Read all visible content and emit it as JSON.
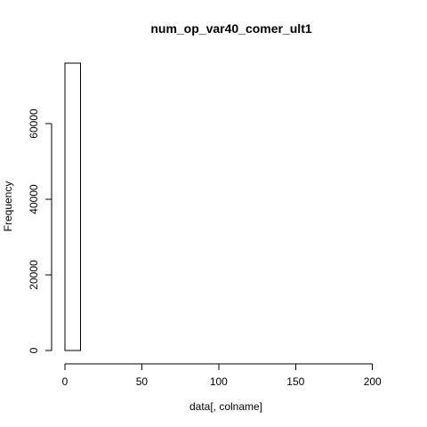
{
  "chart_data": {
    "type": "bar",
    "title": "num_op_var40_comer_ult1",
    "xlabel": "data[, colname]",
    "ylabel": "Frequency",
    "bins": [
      {
        "start": 0,
        "end": 10,
        "count": 76000
      },
      {
        "start": 10,
        "end": 20,
        "count": 0
      },
      {
        "start": 20,
        "end": 30,
        "count": 0
      },
      {
        "start": 30,
        "end": 40,
        "count": 0
      },
      {
        "start": 40,
        "end": 50,
        "count": 0
      },
      {
        "start": 50,
        "end": 60,
        "count": 0
      },
      {
        "start": 60,
        "end": 70,
        "count": 0
      },
      {
        "start": 70,
        "end": 80,
        "count": 0
      },
      {
        "start": 80,
        "end": 90,
        "count": 0
      },
      {
        "start": 90,
        "end": 100,
        "count": 0
      },
      {
        "start": 100,
        "end": 110,
        "count": 0
      },
      {
        "start": 110,
        "end": 120,
        "count": 0
      },
      {
        "start": 120,
        "end": 130,
        "count": 0
      },
      {
        "start": 130,
        "end": 140,
        "count": 0
      },
      {
        "start": 140,
        "end": 150,
        "count": 0
      },
      {
        "start": 150,
        "end": 160,
        "count": 0
      },
      {
        "start": 160,
        "end": 170,
        "count": 0
      },
      {
        "start": 170,
        "end": 180,
        "count": 0
      },
      {
        "start": 180,
        "end": 190,
        "count": 0
      },
      {
        "start": 190,
        "end": 200,
        "count": 0
      },
      {
        "start": 200,
        "end": 210,
        "count": 0
      }
    ],
    "xticks": [
      0,
      50,
      100,
      150,
      200
    ],
    "xtick_labels": [
      "0",
      "50",
      "100",
      "150",
      "200"
    ],
    "yticks": [
      0,
      20000,
      40000,
      60000
    ],
    "ytick_labels": [
      "0",
      "20000",
      "40000",
      "60000"
    ],
    "xlim": [
      0,
      210
    ],
    "ylim": [
      0,
      76000
    ],
    "grid": false,
    "colors": {
      "bar_fill": "#ffffff",
      "bar_stroke": "#000000",
      "axis": "#000000"
    }
  }
}
